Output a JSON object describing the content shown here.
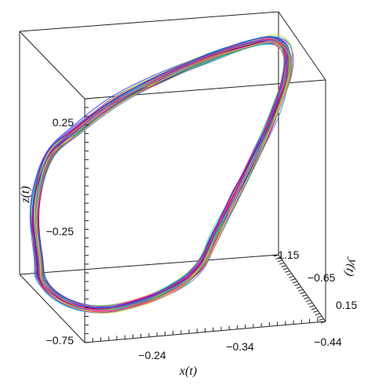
{
  "chart_data": {
    "type": "line",
    "subtype": "3d-trajectory",
    "title": "",
    "axes": {
      "x": {
        "label": "x(t)",
        "ticks": [
          "−0.24",
          "−0.34",
          "−0.44"
        ]
      },
      "y": {
        "label": "y(t)",
        "ticks": [
          "−1.15",
          "−0.65",
          "0.15"
        ]
      },
      "z": {
        "label": "z(t)",
        "ticks": [
          "0.25",
          "−0.25",
          "−0.75"
        ]
      }
    },
    "series_colors": [
      "#00c8c8",
      "#00c060",
      "#30e080",
      "#ff00aa",
      "#e00050",
      "#c01070",
      "#2a2ae0",
      "#5070ff",
      "#d8d020",
      "#ff8080"
    ],
    "grid": false,
    "legend": "none"
  }
}
